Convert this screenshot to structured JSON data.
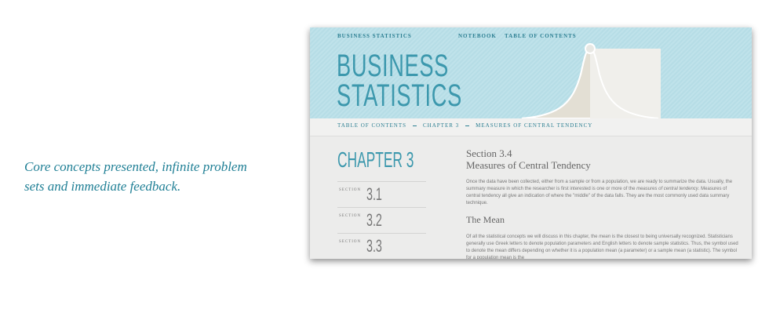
{
  "tagline": {
    "line1": "Core concepts presented, infinite problem",
    "line2": "sets and immediate feedback."
  },
  "screenshot": {
    "nav": {
      "brand": "BUSINESS STATISTICS",
      "links": [
        "NOTEBOOK",
        "TABLE OF CONTENTS"
      ]
    },
    "title": {
      "line1": "BUSINESS",
      "line2": "STATISTICS"
    },
    "breadcrumb": [
      "TABLE OF CONTENTS",
      "CHAPTER 3",
      "MEASURES OF CENTRAL TENDENCY"
    ],
    "sidebar": {
      "chapter": "CHAPTER 3",
      "sections": [
        {
          "label": "SECTION",
          "number": "3.1"
        },
        {
          "label": "SECTION",
          "number": "3.2"
        },
        {
          "label": "SECTION",
          "number": "3.3"
        }
      ]
    },
    "content": {
      "section": "Section 3.4",
      "heading": "Measures of Central Tendency",
      "paragraph1": [
        "Once the data have been collected, either from a sample or from a population, we are ready to summarize the data. Usually, the summary measure in which the researcher is first interested is one or more of the ",
        "measures of central tendency",
        ". Measures of central tendency all give an indication of where the \"middle\" of the data falls. They are the most commonly used data summary technique."
      ],
      "subheading": "The Mean",
      "paragraph2": [
        "Of all the statistical concepts we will discuss in this chapter, the ",
        "mean",
        " is the closest to being universally recognized. Statisticians generally use Greek letters to denote population parameters and English letters to denote sample statistics. Thus, the symbol used to denote the mean differs depending on whether it is a population mean (a parameter) or a sample mean (a statistic). The symbol for a population mean is the"
      ]
    }
  }
}
